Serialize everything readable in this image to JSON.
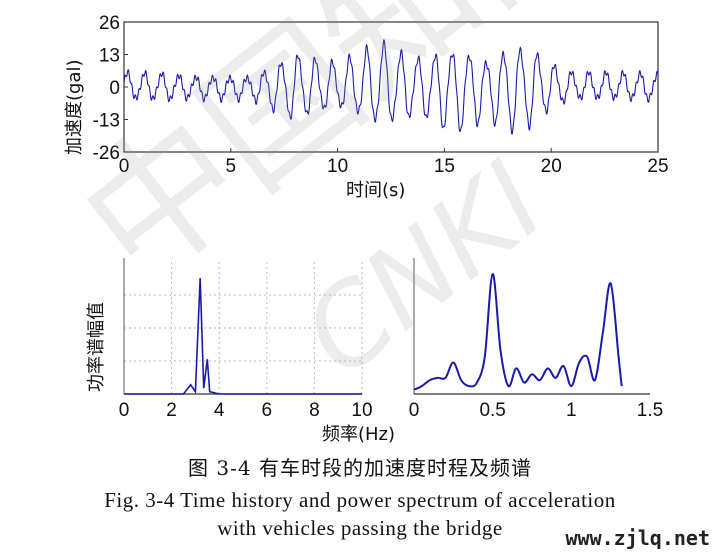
{
  "captions": {
    "zh": "图 3-4 有车时段的加速度时程及频谱",
    "en_line1": "Fig. 3-4 Time history and power spectrum of acceleration",
    "en_line2": "with vehicles passing the bridge"
  },
  "watermark": {
    "text1": "中国知网",
    "text2": "CNKI",
    "site": "www.zjlq.net"
  },
  "chart_data": [
    {
      "type": "line",
      "xlabel": "时间(s)",
      "ylabel": "加速度(gal)",
      "xlim": [
        0,
        25
      ],
      "ylim": [
        -26,
        26
      ],
      "xticks": [
        "0",
        "5",
        "10",
        "15",
        "20",
        "25"
      ],
      "yticks": [
        "26",
        "13",
        "0",
        "-13",
        "-26"
      ],
      "grid": false,
      "color": "#1a1aa8",
      "envelope_t": [
        0,
        1,
        2,
        3,
        4,
        5,
        6,
        7,
        8,
        9,
        10,
        11,
        12,
        13,
        14,
        15,
        16,
        17,
        18,
        19,
        20,
        21,
        22,
        23,
        24,
        25
      ],
      "envelope_amp": [
        6,
        6,
        6,
        5,
        5,
        5,
        5,
        10,
        15,
        12,
        10,
        14,
        19,
        15,
        13,
        18,
        18,
        13,
        19,
        18,
        10,
        6,
        6,
        6,
        6,
        6
      ],
      "dominant_frequency_hz": 1.25
    },
    {
      "type": "line",
      "xlabel": "频率(Hz)",
      "ylabel": "功率谱幅值",
      "xlim": [
        0,
        10
      ],
      "xticks": [
        "0",
        "2",
        "4",
        "6",
        "8",
        "10"
      ],
      "grid": true,
      "color": "#1a1aa8",
      "x": [
        0,
        2.5,
        2.8,
        3.0,
        3.2,
        3.35,
        3.5,
        3.6,
        4.0,
        10
      ],
      "y": [
        0,
        0,
        0.08,
        0.02,
        1.0,
        0.05,
        0.3,
        0.02,
        0,
        0
      ]
    },
    {
      "type": "line",
      "xlabel": "",
      "ylabel": "",
      "xlim": [
        0,
        1.5
      ],
      "xticks": [
        "0",
        "0.5",
        "1",
        "1.5"
      ],
      "grid": false,
      "color": "#1a1aa8",
      "x": [
        0,
        0.05,
        0.1,
        0.15,
        0.2,
        0.25,
        0.3,
        0.35,
        0.4,
        0.45,
        0.5,
        0.55,
        0.6,
        0.65,
        0.7,
        0.75,
        0.8,
        0.85,
        0.9,
        0.95,
        1.0,
        1.05,
        1.1,
        1.15,
        1.2,
        1.25,
        1.3,
        1.32
      ],
      "y": [
        0.02,
        0.05,
        0.1,
        0.12,
        0.12,
        0.25,
        0.1,
        0.05,
        0.08,
        0.3,
        1.0,
        0.35,
        0.05,
        0.2,
        0.08,
        0.15,
        0.1,
        0.2,
        0.12,
        0.22,
        0.05,
        0.25,
        0.3,
        0.1,
        0.5,
        0.92,
        0.3,
        0.05
      ]
    }
  ]
}
